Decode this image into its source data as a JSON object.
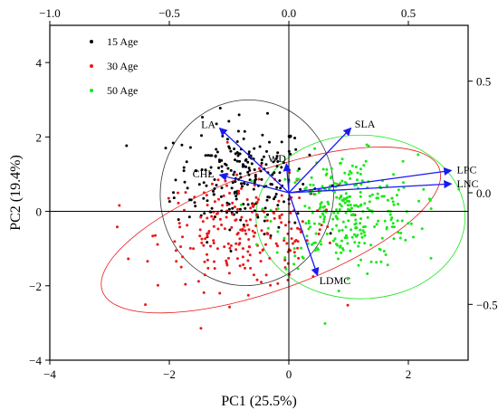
{
  "chart_data": {
    "type": "scatter",
    "subtype": "pca-biplot",
    "xlabel": "PC1 (25.5%)",
    "ylabel": "PC2 (19.4%)",
    "xlim": [
      -4,
      3
    ],
    "ylim": [
      -4,
      5
    ],
    "top_xlim": [
      -1.0,
      0.75
    ],
    "right_ylim": [
      -0.75,
      0.75
    ],
    "x_ticks": [
      -4,
      -2,
      0,
      2
    ],
    "x_tick_labels": [
      "−4",
      "−2",
      "0",
      "2"
    ],
    "y_ticks": [
      -4,
      -2,
      0,
      2,
      4
    ],
    "y_tick_labels": [
      "−4",
      "−2",
      "0",
      "2",
      "4"
    ],
    "top_ticks": [
      -1.0,
      -0.5,
      0.0,
      0.5
    ],
    "top_tick_labels": [
      "−1.0",
      "−0.5",
      "0.0",
      "0.5"
    ],
    "right_ticks": [
      0.5,
      0.0,
      -0.5
    ],
    "right_tick_labels": [
      "0.5",
      "0.0",
      "−0.5"
    ],
    "grid": false,
    "legend_position": "top-left",
    "series": [
      {
        "name": "15 Age",
        "color": "#000000",
        "center": [
          -0.8,
          0.9
        ],
        "spread": [
          0.55,
          0.75
        ],
        "count": 230
      },
      {
        "name": "30 Age",
        "color": "#e8191a",
        "center": [
          -0.7,
          -0.6
        ],
        "spread": [
          0.75,
          0.75
        ],
        "count": 240
      },
      {
        "name": "50 Age",
        "color": "#19e819",
        "center": [
          0.95,
          0.0
        ],
        "spread": [
          0.6,
          0.75
        ],
        "count": 300
      }
    ],
    "ellipses": [
      {
        "series": "15 Age",
        "color": "#333333",
        "center": [
          -0.7,
          0.5
        ],
        "rx": 1.45,
        "ry": 2.5,
        "angle": -8
      },
      {
        "series": "30 Age",
        "color": "#e8191a",
        "center": [
          -0.3,
          -0.5
        ],
        "rx": 3.0,
        "ry": 1.6,
        "angle": 20
      },
      {
        "series": "50 Age",
        "color": "#19e819",
        "center": [
          1.2,
          -0.15
        ],
        "rx": 1.75,
        "ry": 2.2,
        "angle": 0
      }
    ],
    "loadings": [
      {
        "label": "LA",
        "x": -0.29,
        "y": 0.29
      },
      {
        "label": "SLA",
        "x": 0.26,
        "y": 0.29
      },
      {
        "label": "WD",
        "x": -0.01,
        "y": 0.13
      },
      {
        "label": "CHL",
        "x": -0.29,
        "y": 0.08
      },
      {
        "label": "LPC",
        "x": 0.68,
        "y": 0.1
      },
      {
        "label": "LNC",
        "x": 0.68,
        "y": 0.04
      },
      {
        "label": "LDMC",
        "x": 0.12,
        "y": -0.37
      }
    ],
    "arrow_color": "#1a1af0"
  }
}
